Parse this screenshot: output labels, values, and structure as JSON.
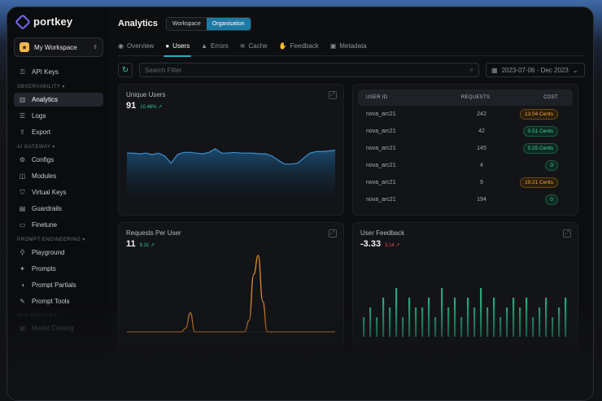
{
  "app": {
    "name": "portkey"
  },
  "workspace": {
    "label": "My Workspace"
  },
  "sidebar": {
    "top_items": [
      {
        "label": "API Keys",
        "icon": "key-icon"
      }
    ],
    "sections": [
      {
        "label": "OBSERVABILITY",
        "items": [
          {
            "label": "Analytics",
            "active": true
          },
          {
            "label": "Logs"
          },
          {
            "label": "Export"
          }
        ]
      },
      {
        "label": "AI GATEWAY",
        "items": [
          {
            "label": "Configs"
          },
          {
            "label": "Modules"
          },
          {
            "label": "Virtual Keys"
          },
          {
            "label": "Guardrails"
          },
          {
            "label": "Finetune"
          }
        ]
      },
      {
        "label": "PROMPT ENGINEERING",
        "items": [
          {
            "label": "Playground"
          },
          {
            "label": "Prompts"
          },
          {
            "label": "Prompt Partials"
          },
          {
            "label": "Prompt Tools"
          }
        ]
      },
      {
        "label": "OPS MODULES",
        "items": [
          {
            "label": "Model Catalog"
          }
        ]
      }
    ]
  },
  "header": {
    "title": "Analytics",
    "toggle": [
      "Workspace",
      "Organisation"
    ],
    "active_toggle": "Organisation"
  },
  "tabs": [
    {
      "label": "Overview"
    },
    {
      "label": "Users",
      "active": true
    },
    {
      "label": "Errors"
    },
    {
      "label": "Cache"
    },
    {
      "label": "Feedback"
    },
    {
      "label": "Metadata"
    }
  ],
  "filter": {
    "placeholder": "Search Filter",
    "date_range": "2023-07-06 - Dec 2023"
  },
  "unique_users": {
    "title": "Unique Users",
    "value": "91",
    "change": "10.46%",
    "trend": "up"
  },
  "requests_per_user": {
    "title": "Requests Per User",
    "value": "11",
    "change": "9.31",
    "trend": "up"
  },
  "user_feedback": {
    "title": "User Feedback",
    "value": "-3.33",
    "change": "3.14",
    "trend": "down"
  },
  "table": {
    "headers": [
      "USER ID",
      "REQUESTS",
      "COST"
    ],
    "rows": [
      {
        "user": "nova_arc21",
        "requests": "242",
        "cost": "13.04 Cents",
        "tone": "orange"
      },
      {
        "user": "nova_arc21",
        "requests": "42",
        "cost": "0.51 Cents",
        "tone": "green"
      },
      {
        "user": "nova_arc21",
        "requests": "145",
        "cost": "0.25 Cents",
        "tone": "green"
      },
      {
        "user": "nova_arc21",
        "requests": "4",
        "cost": "0",
        "tone": "green"
      },
      {
        "user": "nova_arc21",
        "requests": "9",
        "cost": "19.21 Cents",
        "tone": "orange"
      },
      {
        "user": "nova_arc21",
        "requests": "194",
        "cost": "0",
        "tone": "green"
      }
    ]
  },
  "colors": {
    "accent": "#1d7aa3",
    "users_line": "#3a8fd0",
    "requests_line": "#e08a2c",
    "feedback_bars": "#2fbf8a"
  },
  "chart_data": [
    {
      "type": "area",
      "series": [
        {
          "values": [
            62,
            62,
            61,
            62,
            60,
            62,
            58,
            48,
            60,
            63,
            63,
            62,
            61,
            63,
            68,
            62,
            62,
            63,
            62,
            62,
            62,
            61,
            61,
            58,
            52,
            47,
            47,
            48,
            55,
            62,
            64,
            64,
            65,
            66
          ]
        }
      ]
    },
    {
      "type": "line",
      "series": [
        {
          "values": [
            0,
            0,
            0,
            0,
            0,
            0,
            0,
            0,
            0,
            0,
            0,
            0,
            0,
            1,
            5,
            0,
            0,
            0,
            0,
            0,
            0,
            0,
            0,
            0,
            0,
            0,
            0,
            3,
            15,
            20,
            8,
            0,
            0,
            0,
            0,
            0,
            0,
            0,
            0,
            0,
            0,
            0,
            0,
            0,
            0,
            0,
            0
          ]
        }
      ]
    },
    {
      "type": "bar",
      "series": [
        {
          "values": [
            2,
            3,
            2,
            4,
            3,
            5,
            2,
            4,
            3,
            3,
            4,
            2,
            5,
            3,
            4,
            2,
            4,
            3,
            5,
            3,
            4,
            2,
            3,
            4,
            3,
            4,
            2,
            3,
            4,
            2,
            3,
            4
          ]
        }
      ]
    }
  ]
}
